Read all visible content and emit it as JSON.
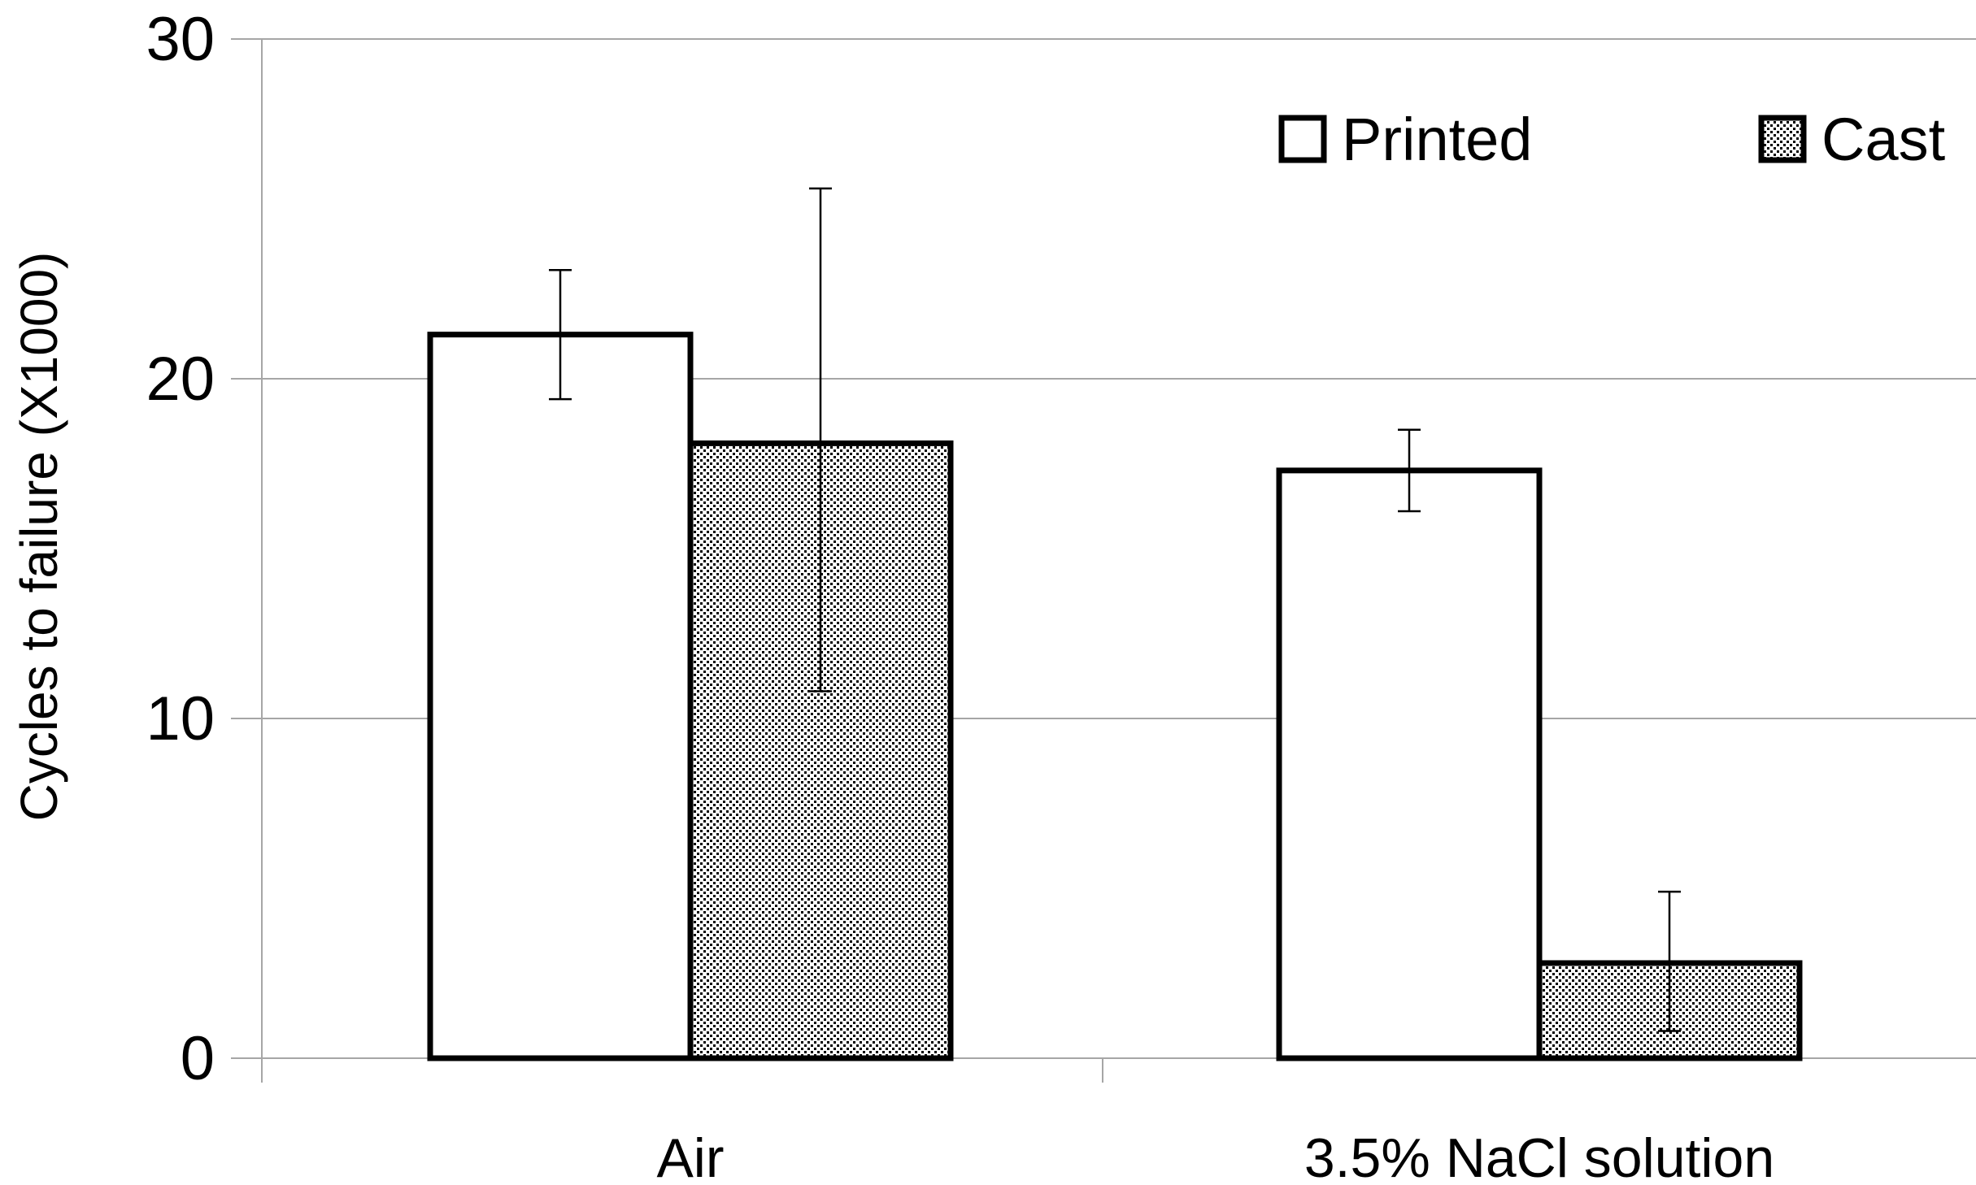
{
  "chart_data": {
    "type": "bar",
    "title": "",
    "xlabel": "",
    "ylabel": "Cycles to failure (X1000)",
    "ylim": [
      0,
      30
    ],
    "yticks": [
      0,
      10,
      20,
      30
    ],
    "grid": true,
    "legend_position": "top-right",
    "categories": [
      "Air",
      "3.5% NaCl solution"
    ],
    "series": [
      {
        "name": "Printed",
        "values": [
          21.3,
          17.3
        ],
        "error_low": [
          19.4,
          16.1
        ],
        "error_high": [
          23.2,
          18.5
        ],
        "fill": "white"
      },
      {
        "name": "Cast",
        "values": [
          18.1,
          2.8
        ],
        "error_low": [
          10.8,
          0.8
        ],
        "error_high": [
          25.6,
          4.9
        ],
        "fill": "dotted"
      }
    ],
    "colors": {
      "bar_stroke": "#000000",
      "grid": "#a6a6a6",
      "pattern_dot": "#000000"
    }
  }
}
